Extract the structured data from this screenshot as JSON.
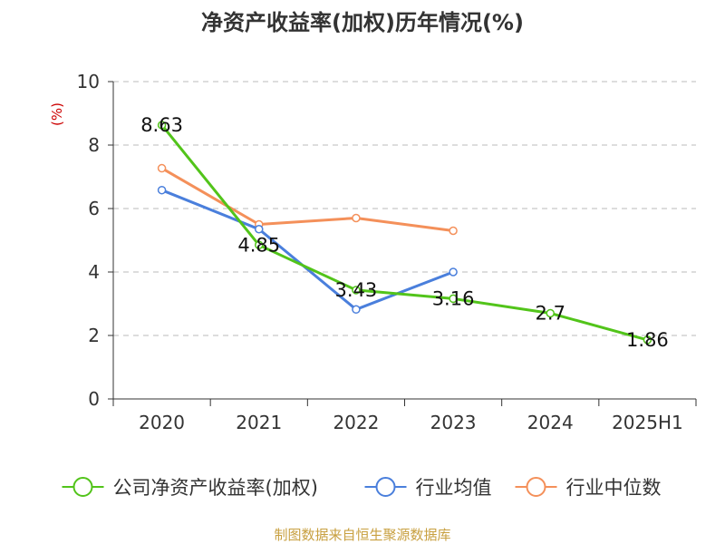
{
  "chart_data": {
    "type": "line",
    "title": "净资产收益率(加权)历年情况(%)",
    "ylabel": "(%)",
    "xlabel": "",
    "categories": [
      "2020",
      "2021",
      "2022",
      "2023",
      "2024",
      "2025H1"
    ],
    "ylim": [
      0,
      10
    ],
    "yticks": [
      0,
      2,
      4,
      6,
      8,
      10
    ],
    "grid": true,
    "legend_position": "bottom",
    "series": [
      {
        "name": "公司净资产收益率(加权)",
        "color": "#52c41a",
        "values": [
          8.63,
          4.85,
          3.43,
          3.16,
          2.7,
          1.86
        ],
        "labels": [
          "8.63",
          "4.85",
          "3.43",
          "3.16",
          "2.7",
          "1.86"
        ]
      },
      {
        "name": "行业均值",
        "color": "#4a7fdc",
        "values": [
          6.58,
          5.35,
          2.82,
          4.0,
          null,
          null
        ]
      },
      {
        "name": "行业中位数",
        "color": "#f4905a",
        "values": [
          7.27,
          5.5,
          5.7,
          5.3,
          null,
          null
        ]
      }
    ]
  },
  "footer": {
    "source": "制图数据来自恒生聚源数据库"
  }
}
